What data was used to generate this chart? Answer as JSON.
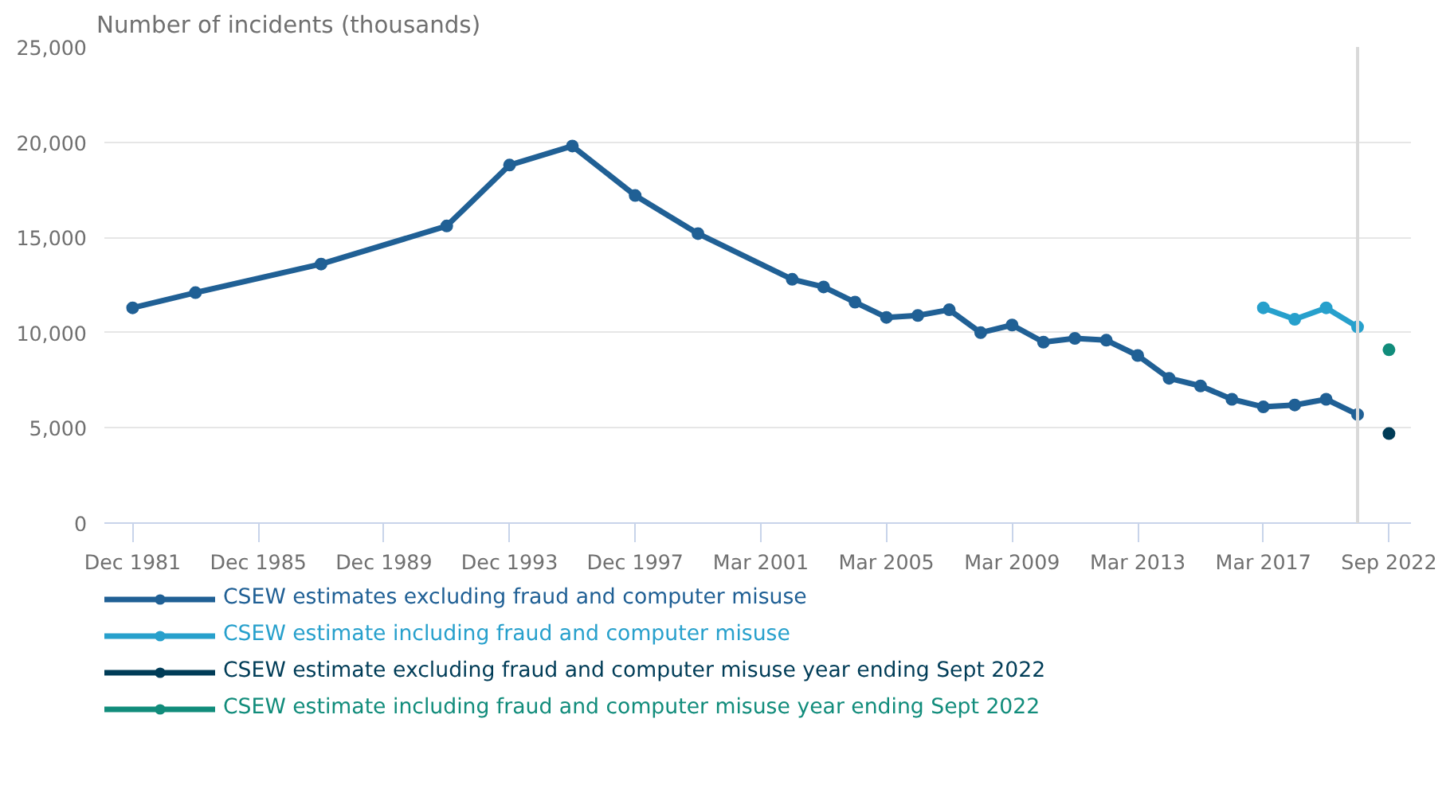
{
  "chart_data": {
    "type": "line",
    "ylabel": "Number of incidents (thousands)",
    "categories": [
      "Dec 1981",
      null,
      null,
      null,
      "Dec 1985",
      null,
      null,
      null,
      "Dec 1989",
      null,
      null,
      null,
      "Dec 1993",
      null,
      null,
      null,
      "Dec 1997",
      null,
      null,
      null,
      "Mar 2001",
      null,
      null,
      null,
      "Mar 2005",
      null,
      null,
      null,
      "Mar 2009",
      null,
      null,
      null,
      "Mar 2013",
      null,
      null,
      null,
      "Mar 2017",
      null,
      null,
      null,
      "Sep 2022"
    ],
    "series": [
      {
        "name": "CSEW estimates excluding fraud and computer misuse",
        "color": "#206095",
        "values": [
          11300,
          null,
          12100,
          null,
          null,
          null,
          13600,
          null,
          null,
          null,
          15600,
          null,
          18800,
          null,
          19800,
          null,
          17200,
          null,
          15200,
          null,
          null,
          12800,
          12400,
          11600,
          10800,
          10900,
          11200,
          10000,
          10400,
          9500,
          9700,
          9600,
          8800,
          7600,
          7200,
          6500,
          6100,
          6200,
          6500,
          5700,
          null
        ]
      },
      {
        "name": "CSEW estimate including fraud and computer misuse",
        "color": "#27a0cc",
        "values": [
          null,
          null,
          null,
          null,
          null,
          null,
          null,
          null,
          null,
          null,
          null,
          null,
          null,
          null,
          null,
          null,
          null,
          null,
          null,
          null,
          null,
          null,
          null,
          null,
          null,
          null,
          null,
          null,
          null,
          null,
          null,
          null,
          null,
          null,
          null,
          null,
          11300,
          10700,
          11300,
          10300,
          null
        ]
      },
      {
        "name": "CSEW estimate excluding fraud and computer misuse year ending Sept 2022",
        "color": "#003c57",
        "values": [
          null,
          null,
          null,
          null,
          null,
          null,
          null,
          null,
          null,
          null,
          null,
          null,
          null,
          null,
          null,
          null,
          null,
          null,
          null,
          null,
          null,
          null,
          null,
          null,
          null,
          null,
          null,
          null,
          null,
          null,
          null,
          null,
          null,
          null,
          null,
          null,
          null,
          null,
          null,
          null,
          4700
        ]
      },
      {
        "name": "CSEW estimate including fraud and computer misuse year ending Sept 2022",
        "color": "#118c7b",
        "values": [
          null,
          null,
          null,
          null,
          null,
          null,
          null,
          null,
          null,
          null,
          null,
          null,
          null,
          null,
          null,
          null,
          null,
          null,
          null,
          null,
          null,
          null,
          null,
          null,
          null,
          null,
          null,
          null,
          null,
          null,
          null,
          null,
          null,
          null,
          null,
          null,
          null,
          null,
          null,
          null,
          9100
        ]
      }
    ],
    "ylim": [
      0,
      25000
    ],
    "yticks": [
      0,
      {
        "value": 5000,
        "label": "5,000"
      },
      {
        "value": 10000,
        "label": "10,000"
      },
      {
        "value": 15000,
        "label": "15,000"
      },
      {
        "value": 20000,
        "label": "20,000"
      },
      {
        "value": 25000,
        "label": "25,000"
      }
    ],
    "grid": "y",
    "legend": "bottom",
    "marker": "circle",
    "line_style": "solid"
  }
}
